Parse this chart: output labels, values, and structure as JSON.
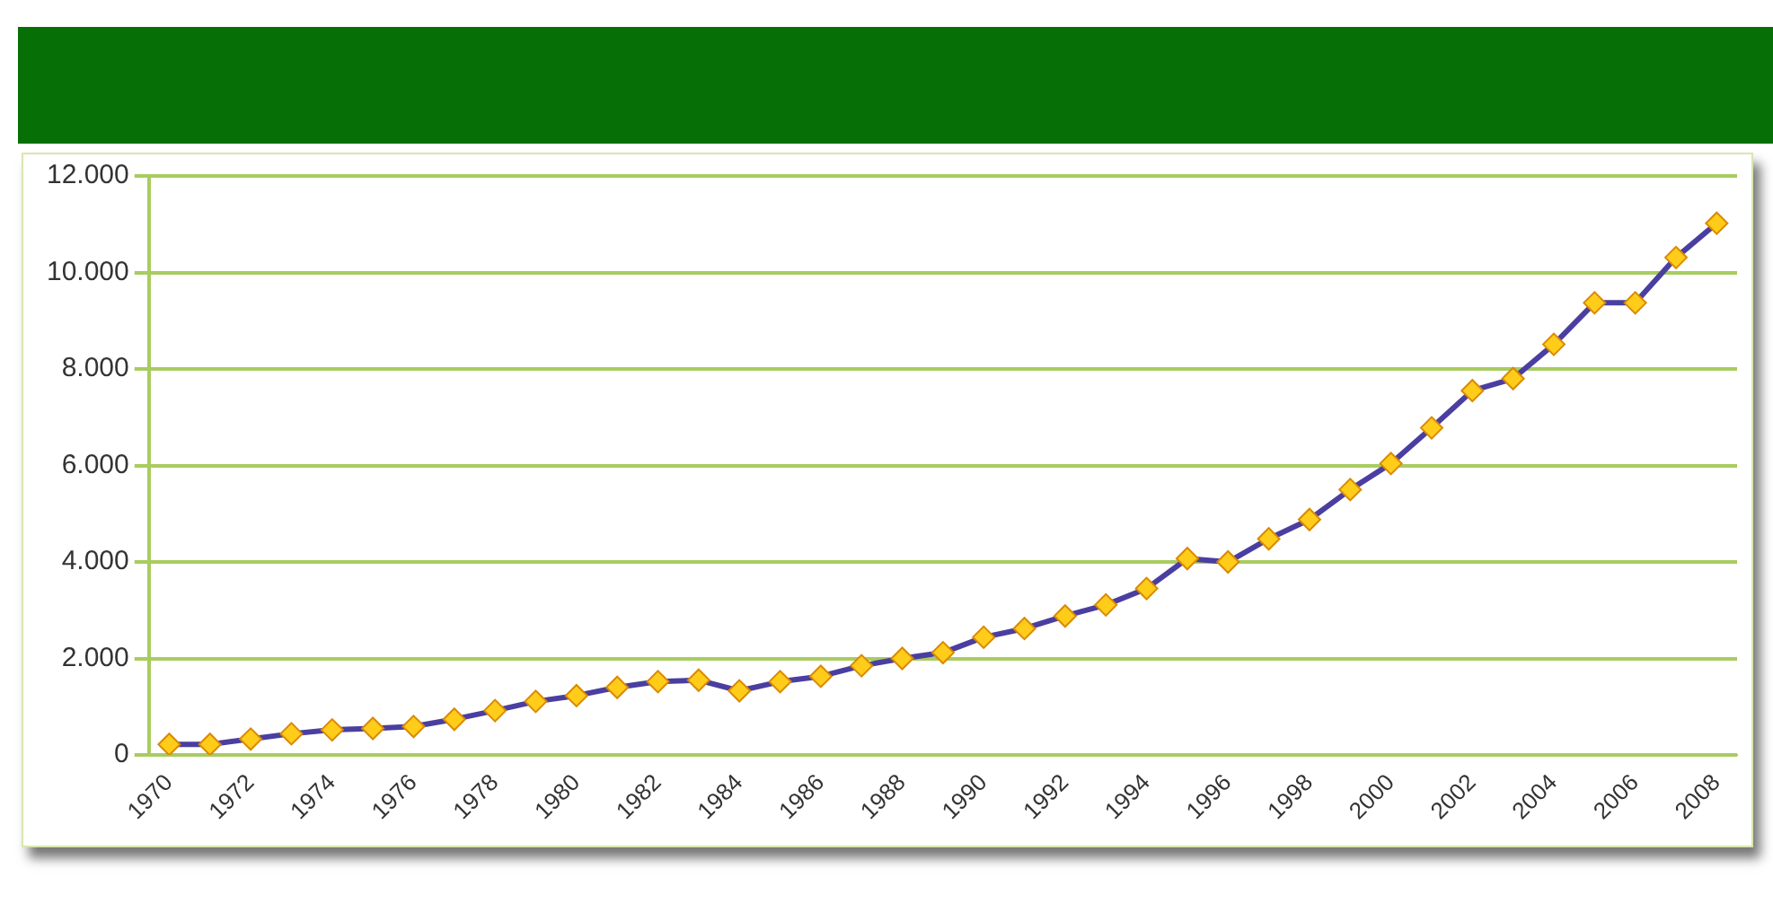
{
  "chart_data": {
    "type": "line",
    "categories": [
      "1970",
      null,
      "1972",
      null,
      "1974",
      null,
      "1976",
      null,
      "1978",
      null,
      "1980",
      null,
      "1982",
      null,
      "1984",
      null,
      "1986",
      null,
      "1988",
      null,
      "1990",
      null,
      "1992",
      null,
      "1994",
      null,
      "1996",
      null,
      "1998",
      null,
      "2000",
      null,
      "2002",
      null,
      "2004",
      null,
      "2006",
      null,
      "2008"
    ],
    "series": [
      {
        "color": "#4a3fa0",
        "values": [
          220,
          220,
          330,
          440,
          520,
          550,
          590,
          740,
          920,
          1110,
          1230,
          1400,
          1520,
          1550,
          1330,
          1520,
          1630,
          1850,
          2000,
          2120,
          2440,
          2620,
          2880,
          3110,
          3450,
          4070,
          4000,
          4480,
          4880,
          5500,
          6040,
          6780,
          7550,
          7800,
          8510,
          9370,
          9370,
          10310,
          11020
        ]
      }
    ],
    "ylim": [
      0,
      12000
    ],
    "yticks": [
      0,
      {
        "value": 2000,
        "label": "2.000"
      },
      {
        "value": 4000,
        "label": "4.000"
      },
      {
        "value": 6000,
        "label": "6.000"
      },
      {
        "value": 8000,
        "label": "8.000"
      },
      {
        "value": 10000,
        "label": "10.000"
      },
      {
        "value": 12000,
        "label": "12.000"
      }
    ],
    "grid": "y",
    "legend": false,
    "marker": "diamond",
    "line_style": "solid"
  }
}
